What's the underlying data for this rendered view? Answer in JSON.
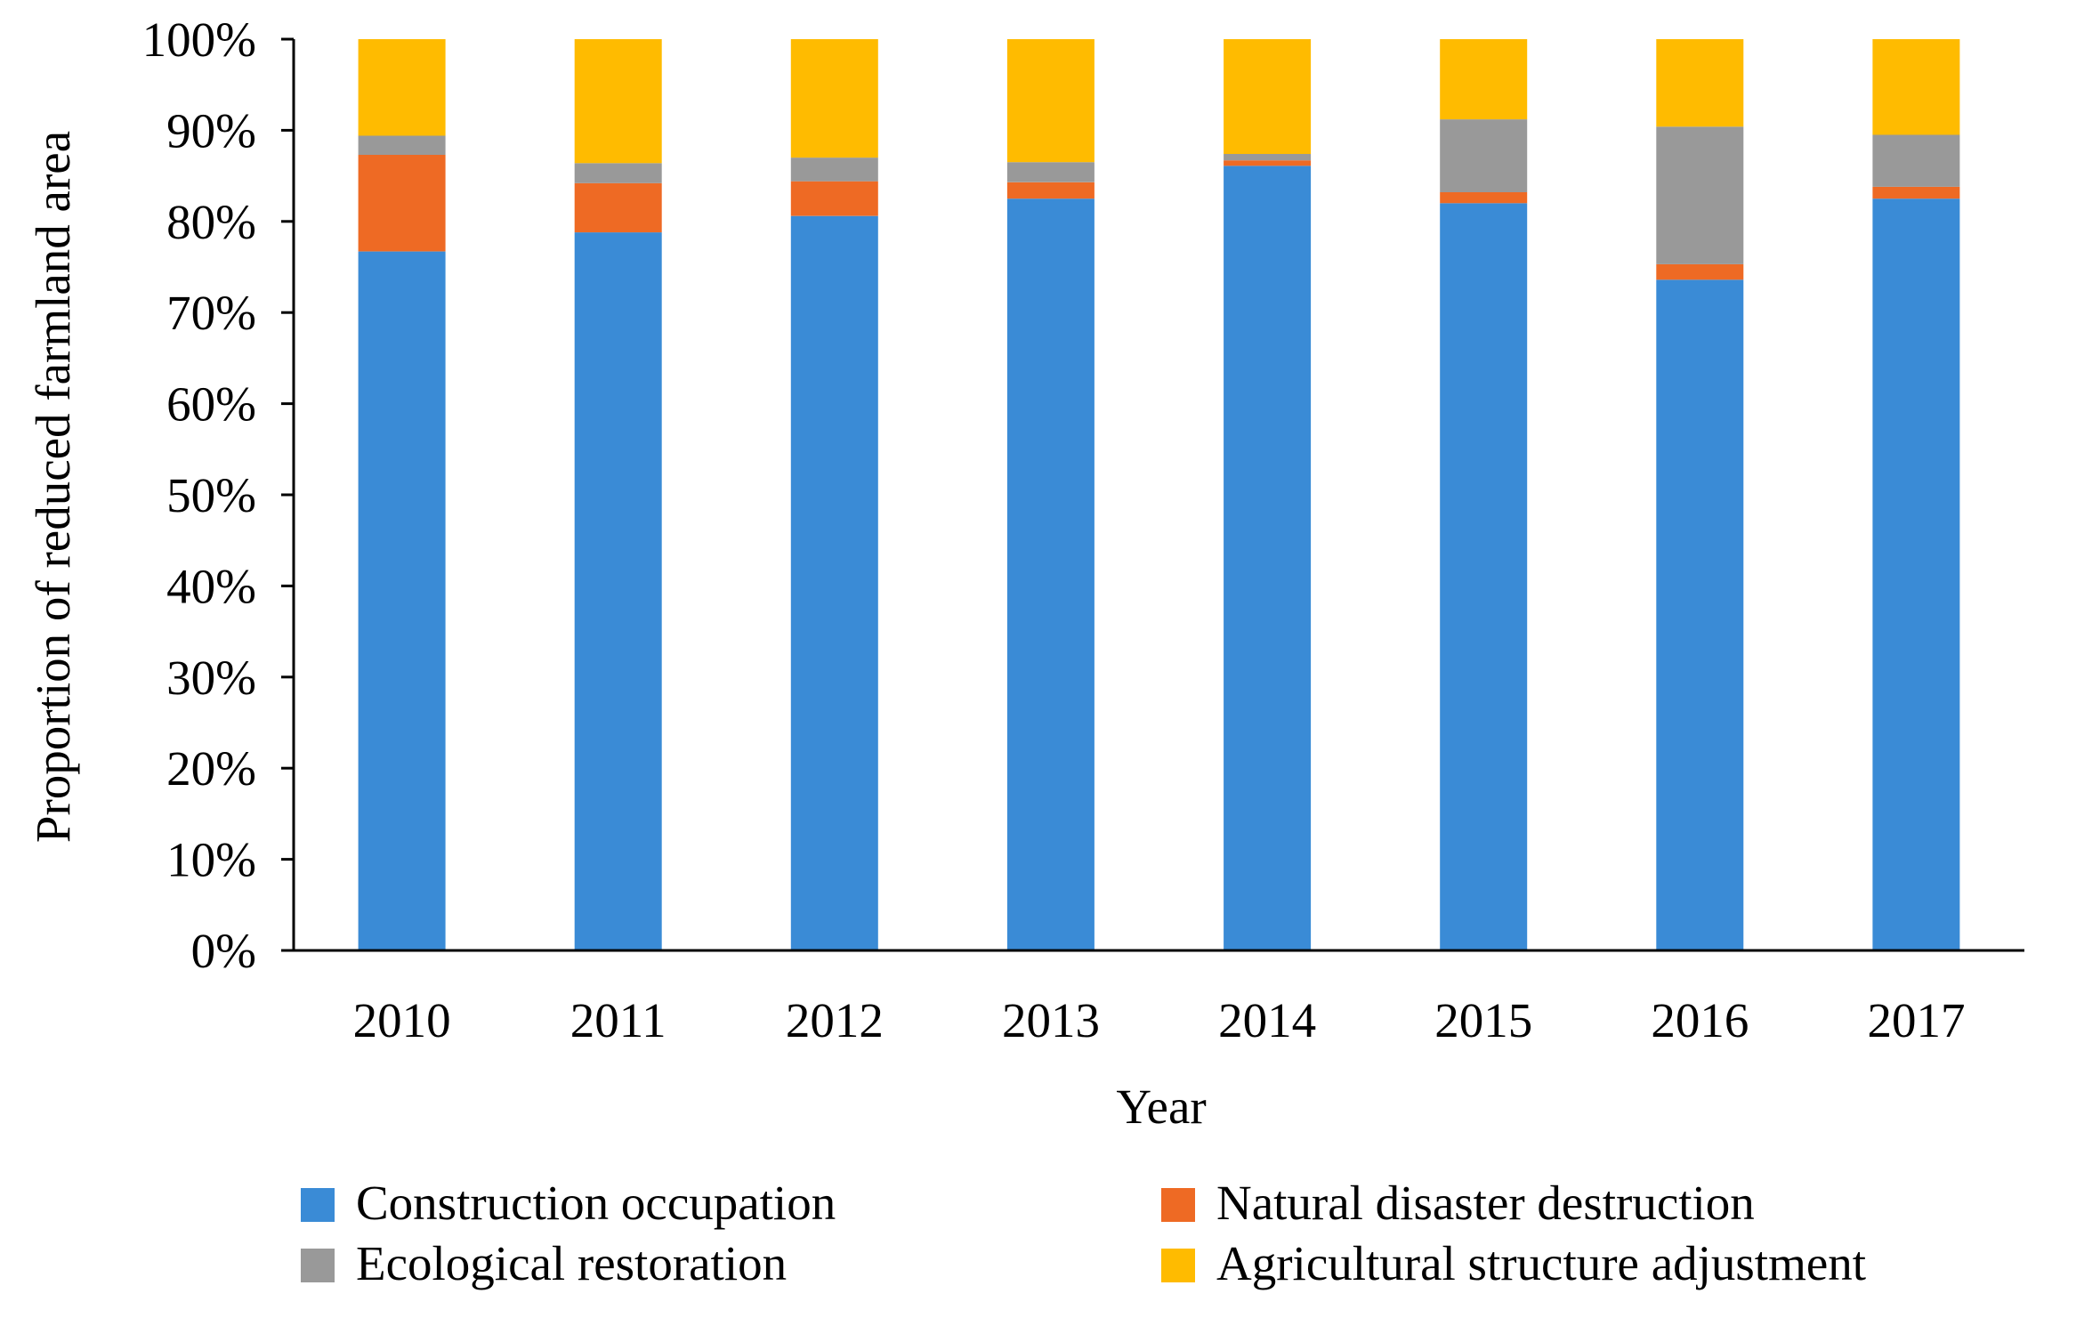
{
  "chart_data": {
    "type": "bar",
    "stacked": true,
    "xlabel": "Year",
    "ylabel": "Proportion of reduced farmland area",
    "categories": [
      "2010",
      "2011",
      "2012",
      "2013",
      "2014",
      "2015",
      "2016",
      "2017"
    ],
    "ylim": [
      0,
      100
    ],
    "yticks": [
      "0%",
      "10%",
      "20%",
      "30%",
      "40%",
      "50%",
      "60%",
      "70%",
      "80%",
      "90%",
      "100%"
    ],
    "grid": false,
    "legend_position": "bottom",
    "series": [
      {
        "name": "Construction occupation",
        "color": "#3A8BD6",
        "values": [
          76.7,
          78.8,
          80.6,
          82.5,
          86.1,
          82.0,
          73.6,
          82.5
        ]
      },
      {
        "name": "Natural disaster destruction",
        "color": "#EE6A24",
        "values": [
          10.6,
          5.4,
          3.8,
          1.8,
          0.6,
          1.2,
          1.7,
          1.3
        ]
      },
      {
        "name": "Ecological restoration",
        "color": "#999999",
        "values": [
          2.1,
          2.2,
          2.6,
          2.2,
          0.7,
          8.0,
          15.1,
          5.7
        ]
      },
      {
        "name": "Agricultural structure adjustment",
        "color": "#FFBB00",
        "values": [
          10.6,
          13.6,
          13.0,
          13.5,
          12.6,
          8.8,
          9.6,
          10.5
        ]
      }
    ]
  }
}
